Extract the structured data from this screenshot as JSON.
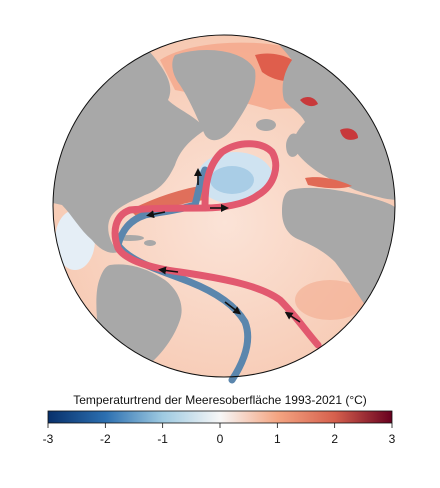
{
  "colorbar": {
    "title": "Temperaturtrend der Meeresoberfläche 1993-2021 (°C)",
    "ticks": [
      "-3",
      "-2",
      "-1",
      "0",
      "1",
      "2",
      "3"
    ],
    "min": -3,
    "max": 3,
    "colors": [
      "#08306b",
      "#2c6fb0",
      "#9ecae1",
      "#f7f7f7",
      "#f4a582",
      "#d6604d",
      "#67001f"
    ]
  },
  "map": {
    "projection": "orthographic",
    "land_color": "#a9a9a9",
    "warm_current_color": "#e2596f",
    "cold_current_color": "#5b86ad"
  }
}
